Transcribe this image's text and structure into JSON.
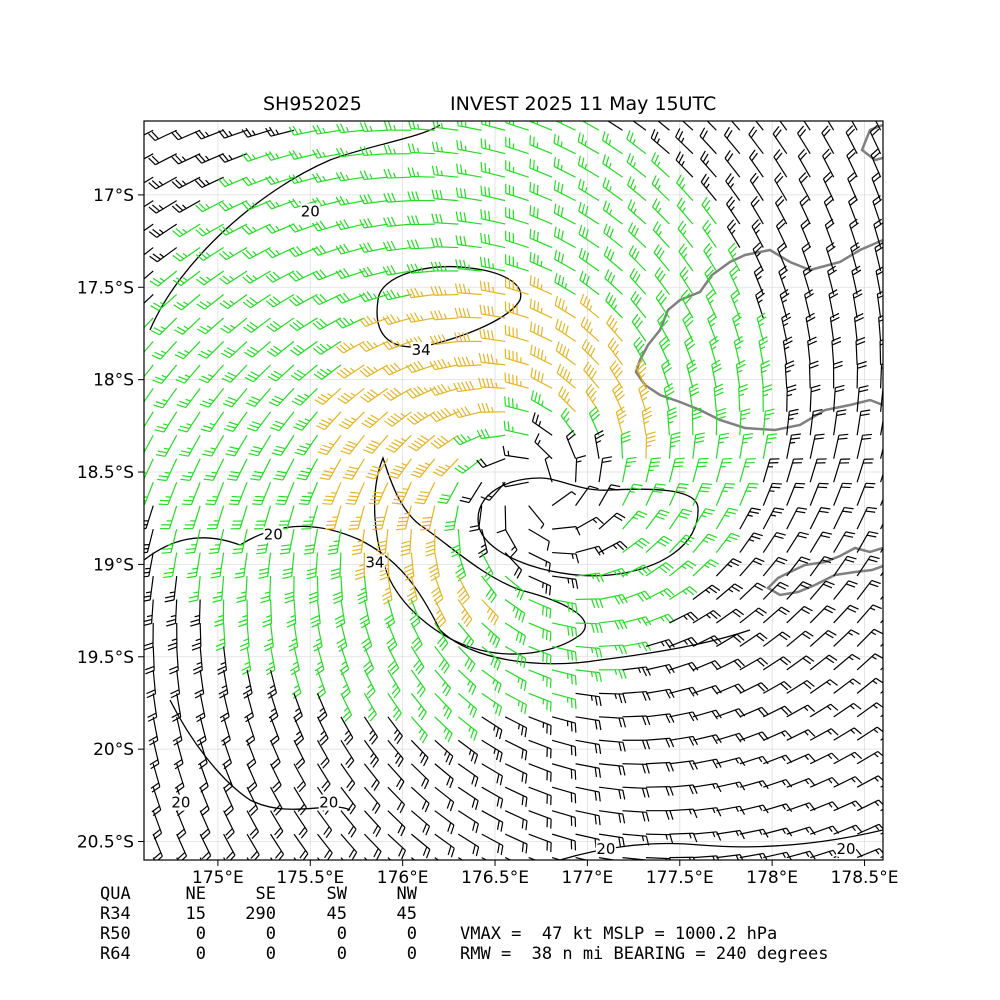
{
  "title": {
    "storm_id": "SH952025",
    "storm_info": "INVEST 2025 11 May 15UTC"
  },
  "chart_data": {
    "type": "wind_barb_map",
    "x_ticks": [
      "175°E",
      "175.5°E",
      "176°E",
      "176.5°E",
      "177°E",
      "177.5°E",
      "178°E",
      "178.5°E"
    ],
    "x_tick_values": [
      175.0,
      175.5,
      176.0,
      176.5,
      177.0,
      177.5,
      178.0,
      178.5
    ],
    "y_ticks": [
      "17°S",
      "17.5°S",
      "18°S",
      "18.5°S",
      "19°S",
      "19.5°S",
      "20°S",
      "20.5°S"
    ],
    "y_tick_values": [
      -17.0,
      -17.5,
      -18.0,
      -18.5,
      -19.0,
      -19.5,
      -20.0,
      -20.5
    ],
    "xlim": [
      174.6,
      178.6
    ],
    "ylim": [
      -20.6,
      -16.6
    ],
    "grid": true,
    "center": {
      "lon": 176.72,
      "lat": -18.62
    },
    "contour_labels": [
      {
        "text": "20",
        "lon": 175.5,
        "lat": -17.1
      },
      {
        "text": "34",
        "lon": 176.1,
        "lat": -17.85
      },
      {
        "text": "20",
        "lon": 175.3,
        "lat": -18.85
      },
      {
        "text": "34",
        "lon": 175.85,
        "lat": -19.0
      },
      {
        "text": "20",
        "lon": 174.8,
        "lat": -20.3
      },
      {
        "text": "20",
        "lon": 175.6,
        "lat": -20.3
      },
      {
        "text": "20",
        "lon": 177.1,
        "lat": -20.55
      },
      {
        "text": "20",
        "lon": 178.4,
        "lat": -20.55
      }
    ],
    "colors": {
      "calm": "#000000",
      "gale": "#22dd22",
      "storm": "#e6b422",
      "coast": "#808080"
    }
  },
  "table": {
    "header": [
      "QUA",
      "NE",
      "SE",
      "SW",
      "NW"
    ],
    "rows": [
      {
        "label": "R34",
        "values": [
          "15",
          "290",
          "45",
          "45"
        ]
      },
      {
        "label": "R50",
        "values": [
          "0",
          "0",
          "0",
          "0"
        ]
      },
      {
        "label": "R64",
        "values": [
          "0",
          "0",
          "0",
          "0"
        ]
      }
    ]
  },
  "stats": {
    "line1": "VMAX =  47 kt MSLP = 1000.2 hPa",
    "line2": "RMW =  38 n mi BEARING = 240 degrees"
  }
}
